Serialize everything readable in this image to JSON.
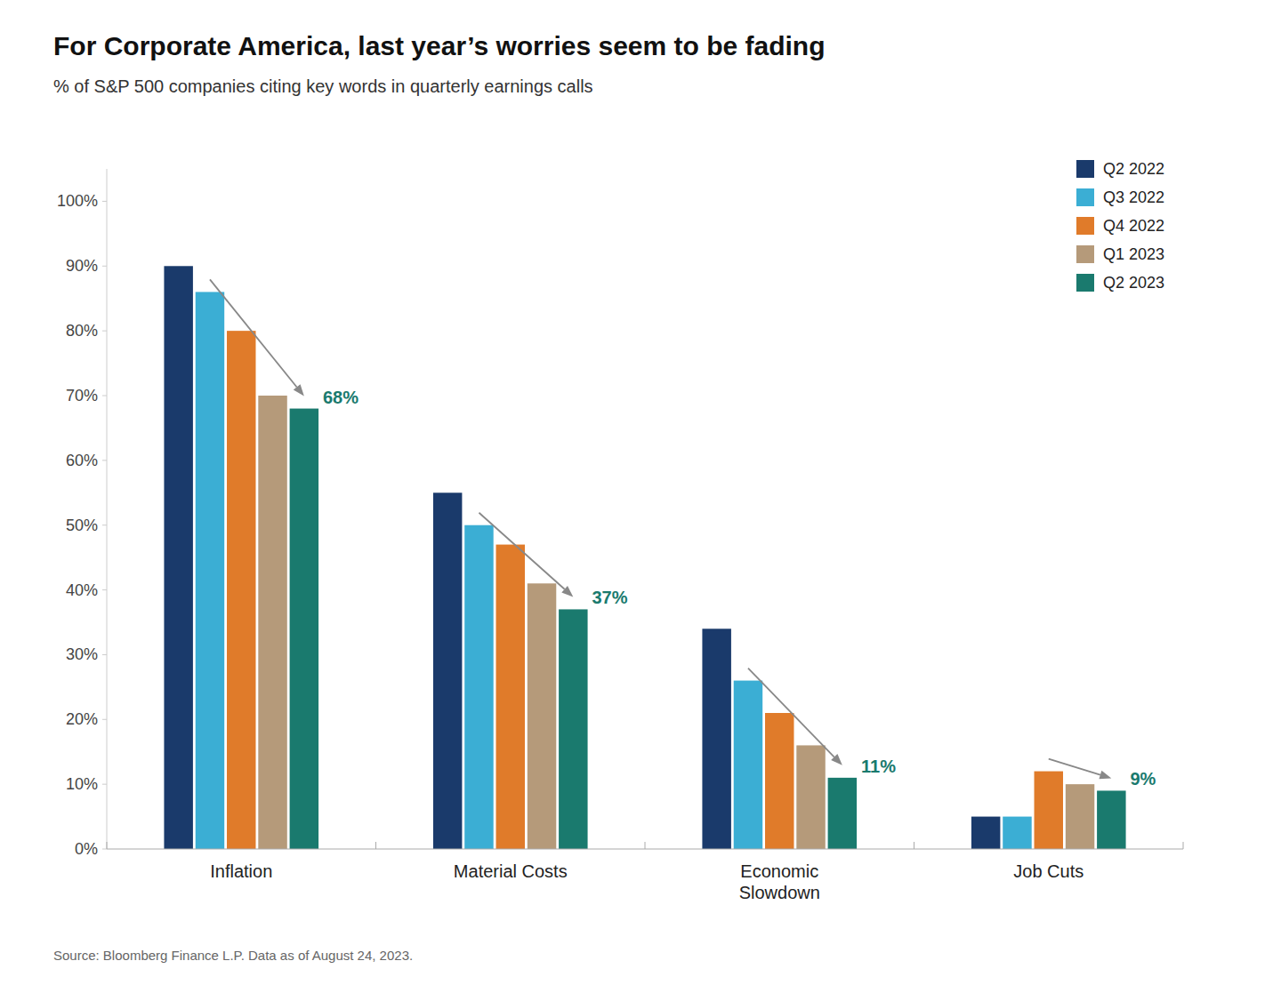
{
  "chart_data": {
    "type": "bar",
    "title": "For Corporate America, last year’s worries seem to be fading",
    "subtitle": "% of S&P 500 companies citing key words in quarterly earnings calls",
    "source": "Source: Bloomberg Finance L.P. Data as of August 24, 2023.",
    "categories": [
      "Inflation",
      "Material Costs",
      "Economic\nSlowdown",
      "Job Cuts"
    ],
    "series": [
      {
        "name": "Q2 2022",
        "color": "#1a3a6b",
        "values": [
          90,
          55,
          34,
          5
        ]
      },
      {
        "name": "Q3 2022",
        "color": "#3baed4",
        "values": [
          86,
          50,
          26,
          5
        ]
      },
      {
        "name": "Q4 2022",
        "color": "#e07b2a",
        "values": [
          80,
          47,
          21,
          12
        ]
      },
      {
        "name": "Q1 2023",
        "color": "#b59a7a",
        "values": [
          70,
          41,
          16,
          10
        ]
      },
      {
        "name": "Q2 2023",
        "color": "#1a7a6e",
        "values": [
          68,
          37,
          11,
          9
        ]
      }
    ],
    "ylim": [
      0,
      105
    ],
    "yticks": [
      {
        "value": 0,
        "label": "0%"
      },
      {
        "value": 10,
        "label": "10%"
      },
      {
        "value": 20,
        "label": "20%"
      },
      {
        "value": 30,
        "label": "30%"
      },
      {
        "value": 40,
        "label": "40%"
      },
      {
        "value": 50,
        "label": "50%"
      },
      {
        "value": 60,
        "label": "60%"
      },
      {
        "value": 70,
        "label": "70%"
      },
      {
        "value": 80,
        "label": "80%"
      },
      {
        "value": 90,
        "label": "90%"
      },
      {
        "value": 100,
        "label": "100%"
      }
    ],
    "grid": false,
    "legend": "upper right",
    "annotations": [
      {
        "text": "68%",
        "category": "Inflation",
        "from": "Q3 2022",
        "to": "Q2 2023",
        "color": "#1a7a6e"
      },
      {
        "text": "37%",
        "category": "Material Costs",
        "from": "Q3 2022",
        "to": "Q2 2023",
        "color": "#1a7a6e"
      },
      {
        "text": "11%",
        "category": "Economic\nSlowdown",
        "from": "Q3 2022",
        "to": "Q2 2023",
        "color": "#1a7a6e"
      },
      {
        "text": "9%",
        "category": "Job Cuts",
        "from": "Q4 2022",
        "to": "Q2 2023",
        "color": "#1a7a6e"
      }
    ]
  }
}
